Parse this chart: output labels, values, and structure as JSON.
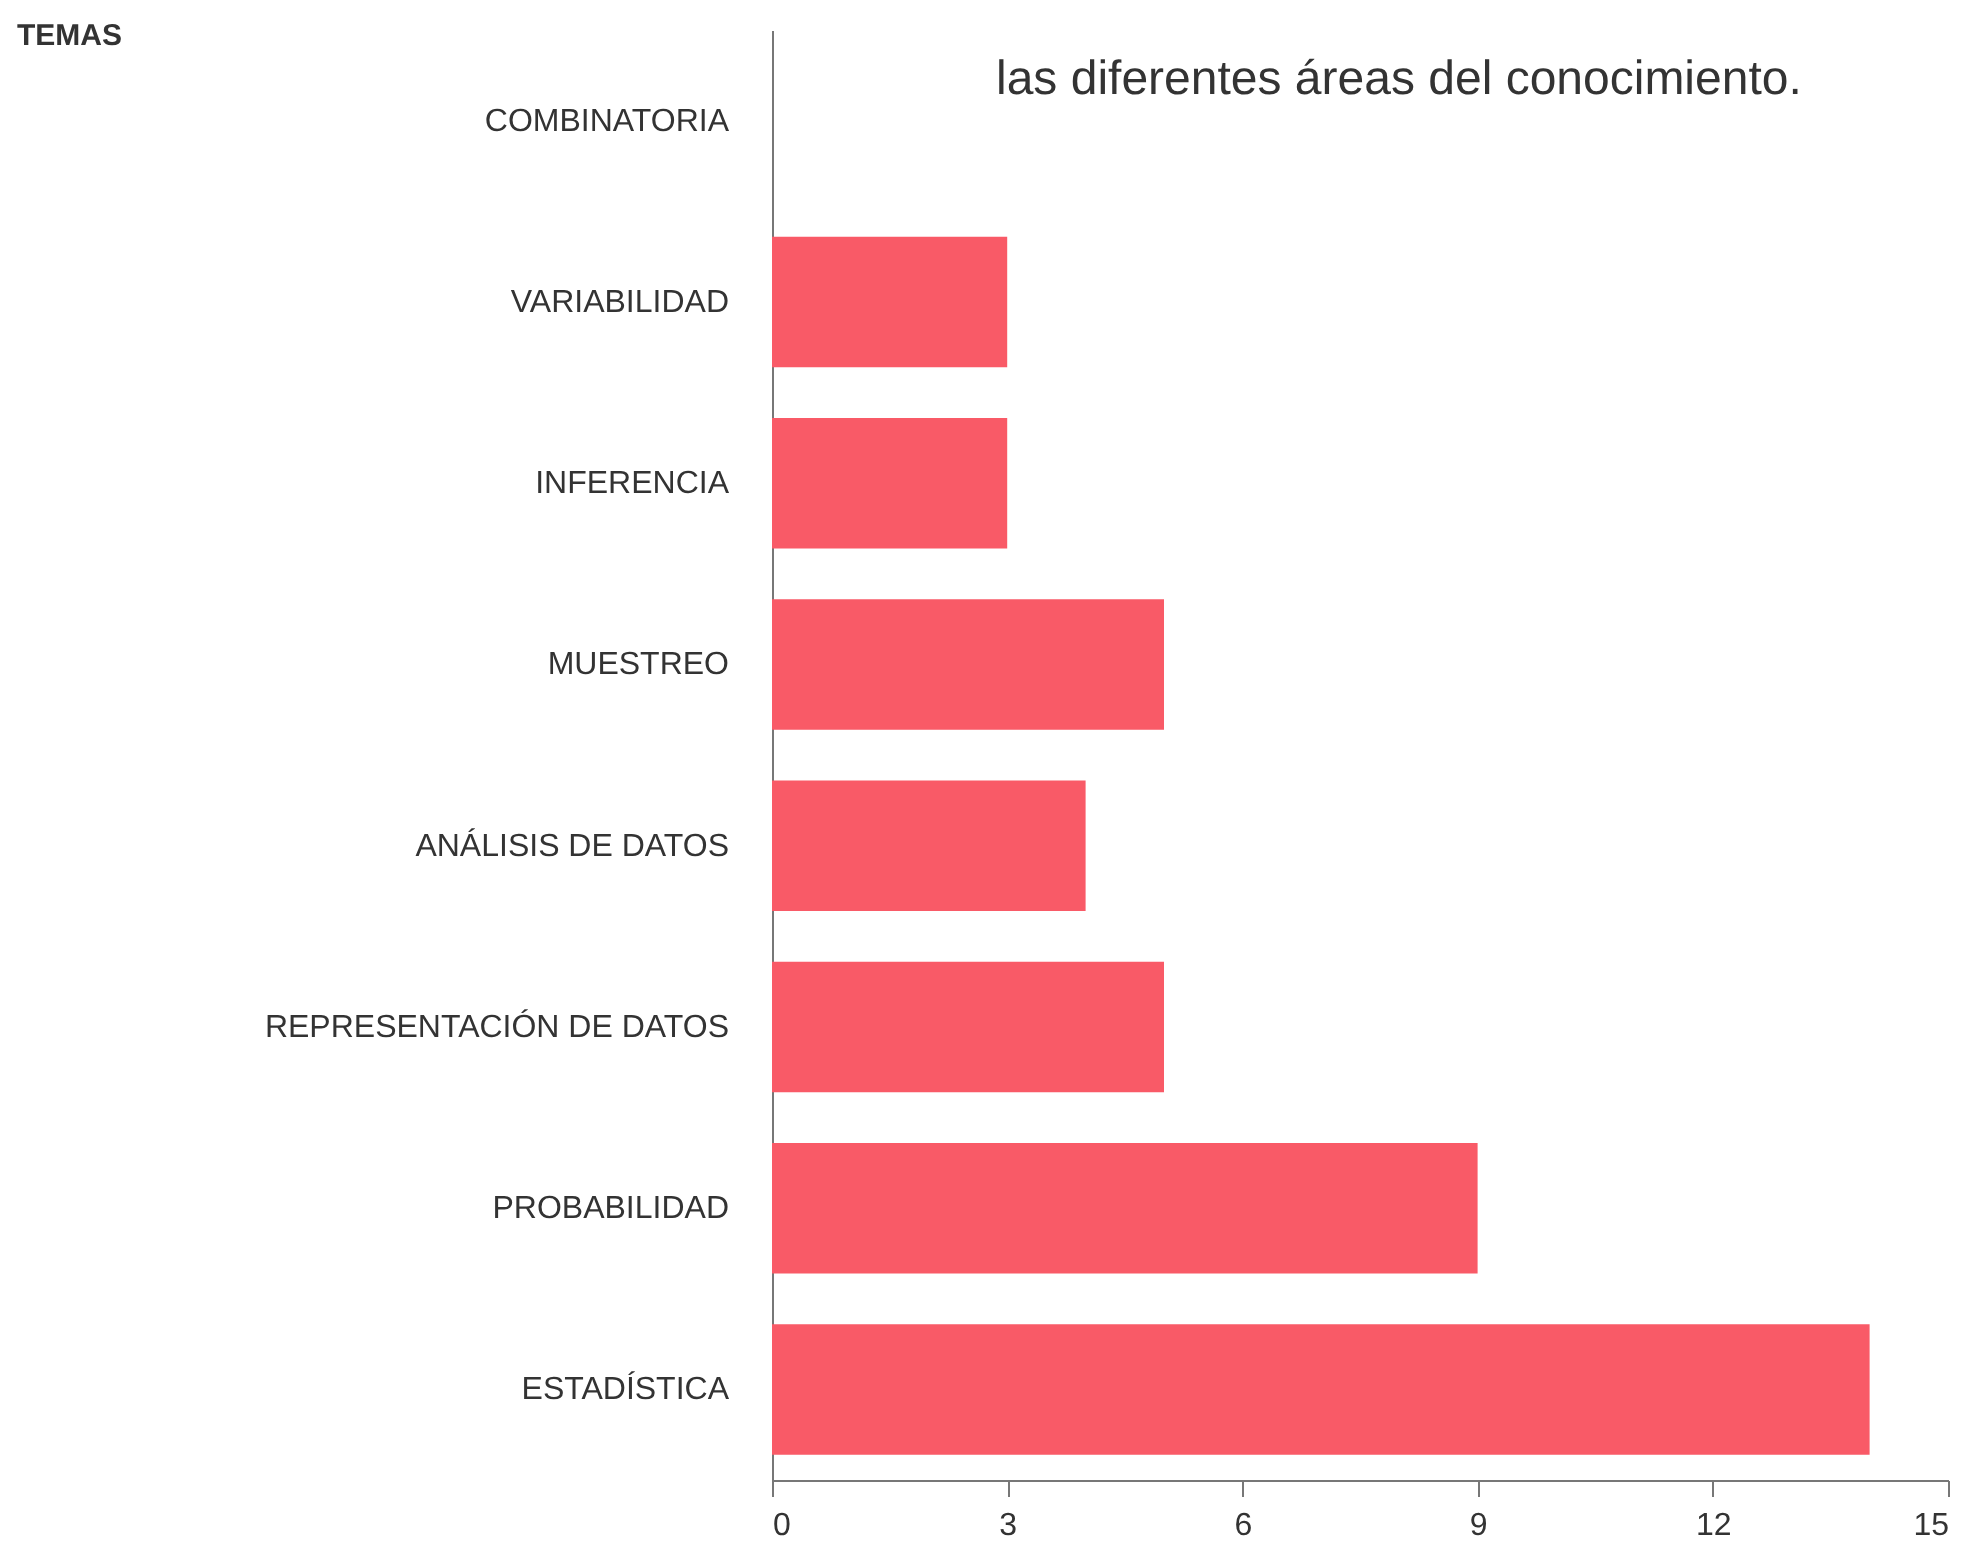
{
  "chart_data": {
    "type": "bar",
    "orientation": "horizontal",
    "ylabel": "TEMAS",
    "categories": [
      "COMBINATORIA",
      "VARIABILIDAD",
      "INFERENCIA",
      "MUESTREO",
      "ANÁLISIS DE DATOS",
      "REPRESENTACIÓN DE DATOS",
      "PROBABILIDAD",
      "ESTADÍSTICA"
    ],
    "values": [
      0,
      3,
      3,
      5,
      4,
      5,
      9,
      14
    ],
    "color": "#f95a67",
    "xlim": [
      0,
      15
    ],
    "xticks": [
      0,
      3,
      6,
      9,
      12,
      15
    ],
    "grid": false,
    "annotations": [
      "las diferentes áreas del conocimiento."
    ]
  }
}
